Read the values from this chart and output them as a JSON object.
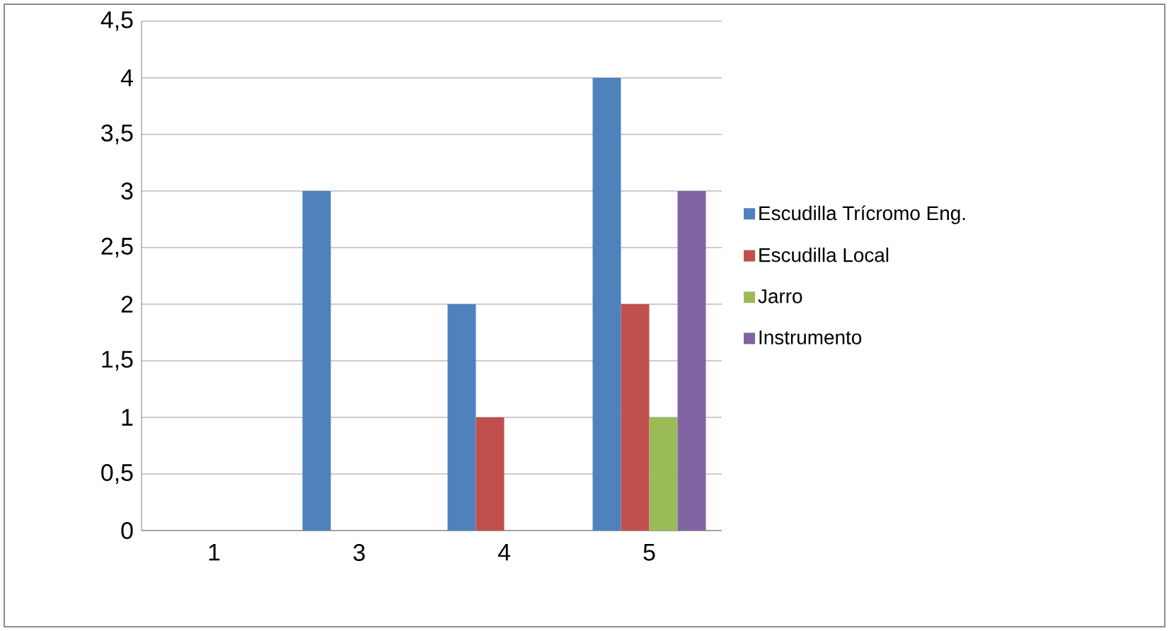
{
  "chart_data": {
    "type": "bar",
    "categories": [
      "1",
      "3",
      "4",
      "5"
    ],
    "series": [
      {
        "name": "Escudilla Trícromo Eng.",
        "color": "#4f81bd",
        "values": [
          0,
          3,
          2,
          4
        ]
      },
      {
        "name": "Escudilla Local",
        "color": "#c0504d",
        "values": [
          0,
          0,
          1,
          2
        ]
      },
      {
        "name": "Jarro",
        "color": "#9bbb59",
        "values": [
          0,
          0,
          0,
          1
        ]
      },
      {
        "name": "Instrumento",
        "color": "#8064a2",
        "values": [
          0,
          0,
          0,
          3
        ]
      }
    ],
    "ylim": [
      0,
      4.5
    ],
    "yticks": [
      0,
      {
        "value": 0.5,
        "label": "0,5"
      },
      1,
      {
        "value": 1.5,
        "label": "1,5"
      },
      2,
      {
        "value": 2.5,
        "label": "2,5"
      },
      3,
      {
        "value": 3.5,
        "label": "3,5"
      },
      4,
      {
        "value": 4.5,
        "label": "4,5"
      }
    ],
    "grid": "y",
    "legend": "right"
  }
}
